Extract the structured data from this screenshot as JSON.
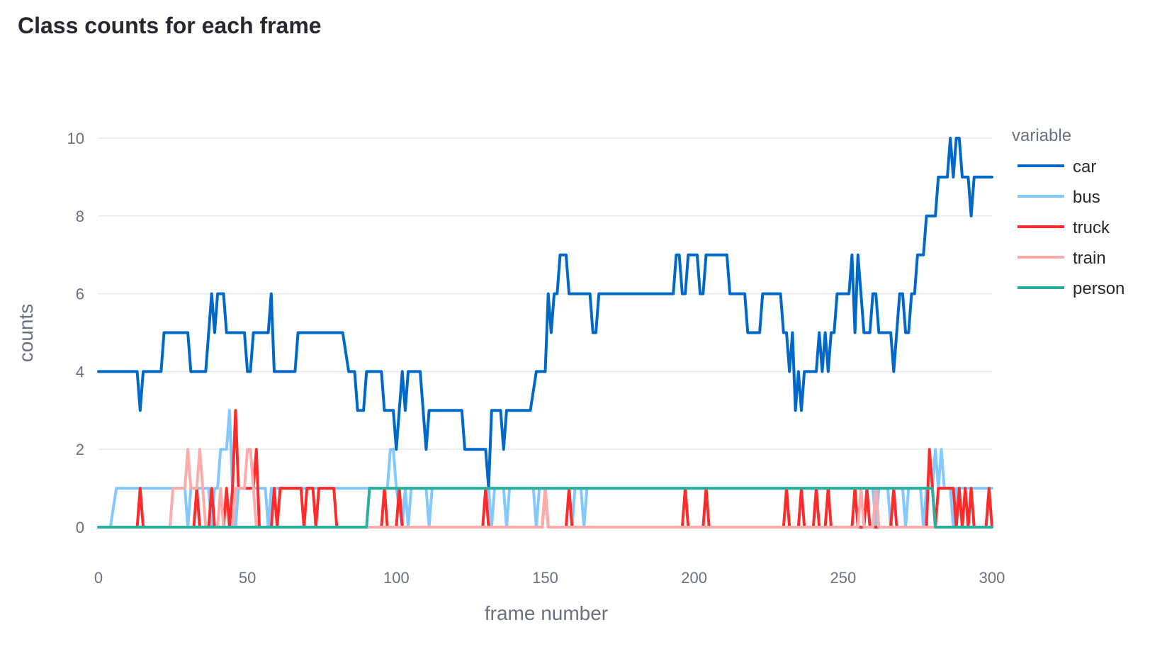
{
  "chart_data": {
    "type": "line",
    "title": "Class counts for each frame",
    "xlabel": "frame number",
    "ylabel": "counts",
    "xlim": [
      0,
      300
    ],
    "ylim": [
      -0.85,
      10.85
    ],
    "xticks": [
      0,
      50,
      100,
      150,
      200,
      250,
      300
    ],
    "yticks": [
      0,
      2,
      4,
      6,
      8,
      10
    ],
    "grid": true,
    "legend": {
      "title": "variable",
      "placement": "right"
    },
    "series": [
      {
        "name": "car",
        "color": "#0068c9",
        "points": [
          [
            0,
            4
          ],
          [
            13,
            4
          ],
          [
            14,
            3
          ],
          [
            15,
            4
          ],
          [
            21,
            4
          ],
          [
            22,
            5
          ],
          [
            30,
            5
          ],
          [
            31,
            4
          ],
          [
            36,
            4
          ],
          [
            38,
            6
          ],
          [
            39,
            5
          ],
          [
            40,
            6
          ],
          [
            42,
            6
          ],
          [
            43,
            5
          ],
          [
            49,
            5
          ],
          [
            50,
            4
          ],
          [
            51,
            4
          ],
          [
            52,
            5
          ],
          [
            57,
            5
          ],
          [
            58,
            6
          ],
          [
            59,
            4
          ],
          [
            66,
            4
          ],
          [
            67,
            5
          ],
          [
            82,
            5
          ],
          [
            84,
            4
          ],
          [
            86,
            4
          ],
          [
            87,
            3
          ],
          [
            89,
            3
          ],
          [
            90,
            4
          ],
          [
            95,
            4
          ],
          [
            96,
            3
          ],
          [
            99,
            3
          ],
          [
            100,
            2
          ],
          [
            102,
            4
          ],
          [
            103,
            3
          ],
          [
            104,
            4
          ],
          [
            108,
            4
          ],
          [
            110,
            2
          ],
          [
            111,
            3
          ],
          [
            122,
            3
          ],
          [
            123,
            2
          ],
          [
            130,
            2
          ],
          [
            131,
            1
          ],
          [
            132,
            3
          ],
          [
            135,
            3
          ],
          [
            136,
            2
          ],
          [
            137,
            3
          ],
          [
            145,
            3
          ],
          [
            147,
            4
          ],
          [
            150,
            4
          ],
          [
            151,
            6
          ],
          [
            152,
            5
          ],
          [
            153,
            6
          ],
          [
            154,
            6
          ],
          [
            155,
            7
          ],
          [
            157,
            7
          ],
          [
            158,
            6
          ],
          [
            165,
            6
          ],
          [
            166,
            5
          ],
          [
            167,
            5
          ],
          [
            168,
            6
          ],
          [
            193,
            6
          ],
          [
            194,
            7
          ],
          [
            195,
            7
          ],
          [
            196,
            6
          ],
          [
            197,
            6
          ],
          [
            198,
            7
          ],
          [
            201,
            7
          ],
          [
            202,
            6
          ],
          [
            203,
            6
          ],
          [
            204,
            7
          ],
          [
            211,
            7
          ],
          [
            212,
            6
          ],
          [
            217,
            6
          ],
          [
            218,
            5
          ],
          [
            222,
            5
          ],
          [
            223,
            6
          ],
          [
            229,
            6
          ],
          [
            230,
            5
          ],
          [
            231,
            5
          ],
          [
            232,
            4
          ],
          [
            233,
            5
          ],
          [
            234,
            3
          ],
          [
            235,
            4
          ],
          [
            236,
            3
          ],
          [
            237,
            4
          ],
          [
            241,
            4
          ],
          [
            242,
            5
          ],
          [
            243,
            4
          ],
          [
            244,
            5
          ],
          [
            245,
            4
          ],
          [
            246,
            5
          ],
          [
            247,
            5
          ],
          [
            248,
            6
          ],
          [
            252,
            6
          ],
          [
            253,
            7
          ],
          [
            254,
            5
          ],
          [
            255,
            7
          ],
          [
            256,
            6
          ],
          [
            257,
            5
          ],
          [
            259,
            5
          ],
          [
            260,
            6
          ],
          [
            261,
            6
          ],
          [
            262,
            5
          ],
          [
            266,
            5
          ],
          [
            267,
            4
          ],
          [
            269,
            6
          ],
          [
            270,
            6
          ],
          [
            271,
            5
          ],
          [
            272,
            5
          ],
          [
            273,
            6
          ],
          [
            274,
            6
          ],
          [
            275,
            7
          ],
          [
            277,
            7
          ],
          [
            278,
            8
          ],
          [
            281,
            8
          ],
          [
            282,
            9
          ],
          [
            285,
            9
          ],
          [
            286,
            10
          ],
          [
            287,
            9
          ],
          [
            288,
            10
          ],
          [
            289,
            10
          ],
          [
            290,
            9
          ],
          [
            292,
            9
          ],
          [
            293,
            8
          ],
          [
            294,
            9
          ],
          [
            300,
            9
          ]
        ]
      },
      {
        "name": "bus",
        "color": "#83c9ff",
        "points": [
          [
            0,
            0
          ],
          [
            4,
            0
          ],
          [
            6,
            1
          ],
          [
            29,
            1
          ],
          [
            30,
            0
          ],
          [
            31,
            1
          ],
          [
            37,
            1
          ],
          [
            38,
            0
          ],
          [
            39,
            1
          ],
          [
            40,
            1
          ],
          [
            41,
            2
          ],
          [
            43,
            2
          ],
          [
            44,
            3
          ],
          [
            45,
            1
          ],
          [
            46,
            0
          ],
          [
            47,
            1
          ],
          [
            56,
            1
          ],
          [
            57,
            0
          ],
          [
            58,
            1
          ],
          [
            97,
            1
          ],
          [
            98,
            2
          ],
          [
            99,
            2
          ],
          [
            100,
            1
          ],
          [
            102,
            0
          ],
          [
            103,
            1
          ],
          [
            104,
            0
          ],
          [
            105,
            1
          ],
          [
            110,
            1
          ],
          [
            111,
            0
          ],
          [
            112,
            1
          ],
          [
            131,
            1
          ],
          [
            132,
            0
          ],
          [
            133,
            1
          ],
          [
            136,
            1
          ],
          [
            137,
            0
          ],
          [
            138,
            1
          ],
          [
            146,
            1
          ],
          [
            147,
            0
          ],
          [
            148,
            1
          ],
          [
            158,
            1
          ],
          [
            159,
            0
          ],
          [
            160,
            1
          ],
          [
            162,
            1
          ],
          [
            163,
            0
          ],
          [
            164,
            1
          ],
          [
            260,
            1
          ],
          [
            261,
            0
          ],
          [
            262,
            1
          ],
          [
            265,
            1
          ],
          [
            266,
            0
          ],
          [
            267,
            1
          ],
          [
            270,
            1
          ],
          [
            271,
            0
          ],
          [
            272,
            1
          ],
          [
            276,
            1
          ],
          [
            277,
            0
          ],
          [
            278,
            1
          ],
          [
            280,
            1
          ],
          [
            281,
            2
          ],
          [
            282,
            1
          ],
          [
            283,
            2
          ],
          [
            284,
            1
          ],
          [
            286,
            1
          ],
          [
            287,
            0
          ],
          [
            288,
            1
          ],
          [
            300,
            1
          ]
        ]
      },
      {
        "name": "truck",
        "color": "#ff2b2b",
        "points": [
          [
            0,
            0
          ],
          [
            13,
            0
          ],
          [
            14,
            1
          ],
          [
            15,
            0
          ],
          [
            32,
            0
          ],
          [
            33,
            1
          ],
          [
            34,
            0
          ],
          [
            37,
            0
          ],
          [
            38,
            1
          ],
          [
            39,
            0
          ],
          [
            42,
            0
          ],
          [
            43,
            1
          ],
          [
            44,
            0
          ],
          [
            45,
            1
          ],
          [
            46,
            3
          ],
          [
            47,
            1
          ],
          [
            52,
            1
          ],
          [
            53,
            2
          ],
          [
            54,
            0
          ],
          [
            58,
            0
          ],
          [
            59,
            1
          ],
          [
            60,
            0
          ],
          [
            61,
            1
          ],
          [
            68,
            1
          ],
          [
            69,
            0
          ],
          [
            70,
            1
          ],
          [
            72,
            1
          ],
          [
            73,
            0
          ],
          [
            74,
            1
          ],
          [
            79,
            1
          ],
          [
            80,
            0
          ],
          [
            95,
            0
          ],
          [
            96,
            1
          ],
          [
            97,
            0
          ],
          [
            100,
            0
          ],
          [
            101,
            1
          ],
          [
            102,
            0
          ],
          [
            129,
            0
          ],
          [
            130,
            1
          ],
          [
            131,
            0
          ],
          [
            149,
            0
          ],
          [
            150,
            1
          ],
          [
            151,
            0
          ],
          [
            157,
            0
          ],
          [
            158,
            1
          ],
          [
            159,
            0
          ],
          [
            196,
            0
          ],
          [
            197,
            1
          ],
          [
            198,
            0
          ],
          [
            203,
            0
          ],
          [
            204,
            1
          ],
          [
            205,
            0
          ],
          [
            230,
            0
          ],
          [
            231,
            1
          ],
          [
            232,
            0
          ],
          [
            235,
            0
          ],
          [
            236,
            1
          ],
          [
            237,
            0
          ],
          [
            240,
            0
          ],
          [
            241,
            1
          ],
          [
            242,
            0
          ],
          [
            244,
            0
          ],
          [
            245,
            1
          ],
          [
            246,
            0
          ],
          [
            253,
            0
          ],
          [
            254,
            1
          ],
          [
            255,
            0
          ],
          [
            257,
            0
          ],
          [
            258,
            1
          ],
          [
            259,
            0
          ],
          [
            266,
            0
          ],
          [
            267,
            1
          ],
          [
            268,
            0
          ],
          [
            278,
            0
          ],
          [
            279,
            2
          ],
          [
            280,
            1
          ],
          [
            281,
            0
          ],
          [
            282,
            1
          ],
          [
            287,
            1
          ],
          [
            288,
            0
          ],
          [
            289,
            1
          ],
          [
            290,
            0
          ],
          [
            291,
            1
          ],
          [
            292,
            0
          ],
          [
            293,
            1
          ],
          [
            294,
            0
          ],
          [
            298,
            0
          ],
          [
            299,
            1
          ],
          [
            300,
            0
          ]
        ]
      },
      {
        "name": "train",
        "color": "#ffabab",
        "points": [
          [
            0,
            0
          ],
          [
            24,
            0
          ],
          [
            25,
            1
          ],
          [
            29,
            1
          ],
          [
            30,
            2
          ],
          [
            31,
            1
          ],
          [
            33,
            1
          ],
          [
            34,
            2
          ],
          [
            35,
            1
          ],
          [
            36,
            0
          ],
          [
            40,
            0
          ],
          [
            41,
            1
          ],
          [
            42,
            0
          ],
          [
            45,
            0
          ],
          [
            46,
            1
          ],
          [
            49,
            1
          ],
          [
            50,
            2
          ],
          [
            51,
            2
          ],
          [
            52,
            1
          ],
          [
            53,
            0
          ],
          [
            149,
            0
          ],
          [
            150,
            1
          ],
          [
            151,
            0
          ],
          [
            255,
            0
          ],
          [
            256,
            1
          ],
          [
            257,
            0
          ],
          [
            260,
            0
          ],
          [
            261,
            1
          ],
          [
            262,
            0
          ],
          [
            300,
            0
          ]
        ]
      },
      {
        "name": "person",
        "color": "#29b09d",
        "points": [
          [
            0,
            0
          ],
          [
            90,
            0
          ],
          [
            91,
            1
          ],
          [
            280,
            1
          ],
          [
            281,
            0
          ],
          [
            300,
            0
          ]
        ]
      }
    ]
  }
}
